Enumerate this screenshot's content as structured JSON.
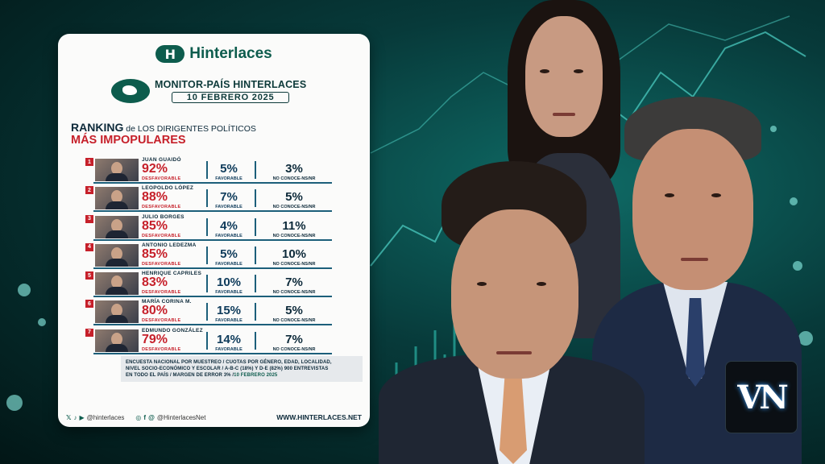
{
  "brand": {
    "mark": "H",
    "name": "Hinterlaces"
  },
  "monitor": {
    "title": "MONITOR-PAÍS HINTERLACES",
    "date": "10 FEBRERO 2025"
  },
  "heading": {
    "ranking": "RANKING",
    "rest": "de LOS DIRIGENTES POLÍTICOS",
    "sub": "MÁS IMPOPULARES"
  },
  "labels": {
    "unfavorable": "DESFAVORABLE",
    "favorable": "FAVORABLE",
    "unknown": "NO CONOCE-NS/NR"
  },
  "chart_data": {
    "type": "table",
    "title": "RANKING de LOS DIRIGENTES POLÍTICOS MÁS IMPOPULARES",
    "columns": [
      "DESFAVORABLE",
      "FAVORABLE",
      "NO CONOCE-NS/NR"
    ],
    "rows": [
      {
        "rank": "1",
        "name": "JUAN GUAIDÓ",
        "desfavorable": "92%",
        "favorable": "5%",
        "no_conoce": "3%"
      },
      {
        "rank": "2",
        "name": "LEOPOLDO LÓPEZ",
        "desfavorable": "88%",
        "favorable": "7%",
        "no_conoce": "5%"
      },
      {
        "rank": "3",
        "name": "JULIO BORGES",
        "desfavorable": "85%",
        "favorable": "4%",
        "no_conoce": "11%"
      },
      {
        "rank": "4",
        "name": "ANTONIO LEDEZMA",
        "desfavorable": "85%",
        "favorable": "5%",
        "no_conoce": "10%"
      },
      {
        "rank": "5",
        "name": "HENRIQUE CAPRILES",
        "desfavorable": "83%",
        "favorable": "10%",
        "no_conoce": "7%"
      },
      {
        "rank": "6",
        "name": "MARÍA CORINA M.",
        "desfavorable": "80%",
        "favorable": "15%",
        "no_conoce": "5%"
      },
      {
        "rank": "7",
        "name": "EDMUNDO GONZÁLEZ",
        "desfavorable": "79%",
        "favorable": "14%",
        "no_conoce": "7%"
      }
    ]
  },
  "note": {
    "line1": "ENCUESTA NACIONAL POR MUESTREO / CUOTAS POR GÉNERO, EDAD, LOCALIDAD,",
    "line2": "NIVEL SOCIO-ECONÓMICO Y ESCOLAR / A-B-C (18%) Y D-E (82%) 900 ENTREVISTAS",
    "line3": "EN TODO EL PAÍS / MARGEN DE ERROR 3% /",
    "date": "10 FEBRERO 2025"
  },
  "footer": {
    "handle1": "@hinterlaces",
    "handle2": "@HinterlacesNet",
    "website": "WWW.HINTERLACES.NET"
  },
  "colors": {
    "accent_red": "#c6202a",
    "brand_green": "#0d5c4d",
    "navy": "#0d2a3a",
    "background": "#073a3a"
  },
  "vn_logo": {
    "text": "VN"
  }
}
